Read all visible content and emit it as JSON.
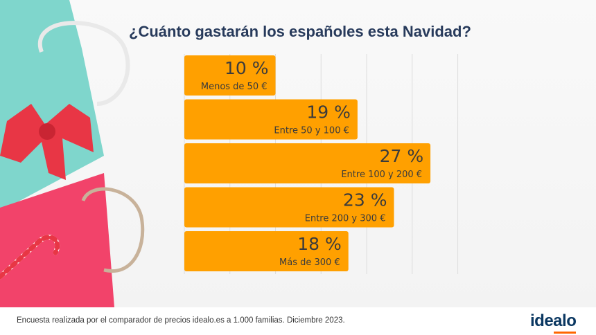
{
  "title": "¿Cuánto gastarán los españoles esta Navidad?",
  "chart_data": {
    "type": "bar",
    "orientation": "horizontal",
    "categories": [
      "Menos de 50 €",
      "Entre 50 y 100 €",
      "Entre 100 y 200 €",
      "Entre 200 y 300 €",
      "Más de 300 €"
    ],
    "values": [
      10,
      19,
      27,
      23,
      18
    ],
    "data_labels": [
      "10 %",
      "19 %",
      "27 %",
      "23 %",
      "18 %"
    ],
    "unit": "%",
    "bar_color": "#ffa000",
    "grid": true,
    "xlim": [
      0,
      33
    ]
  },
  "footer": {
    "text": "Encuesta realizada por el comparador de precios idealo.es a 1.000 familias. Diciembre 2023.",
    "logo": "idealo",
    "logo_color": "#0a3761",
    "logo_accent": "#ff6600"
  }
}
